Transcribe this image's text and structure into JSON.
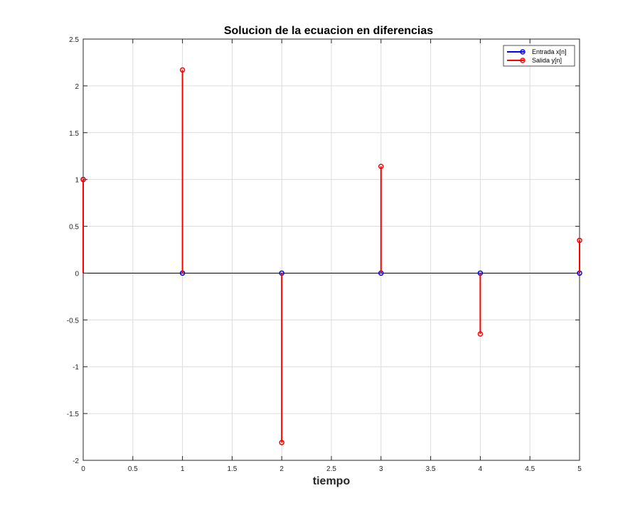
{
  "chart_data": {
    "type": "stem",
    "title": "Solucion de la ecuacion en diferencias",
    "xlabel": "tiempo",
    "ylabel": "",
    "xlim": [
      0,
      5
    ],
    "ylim": [
      -2,
      2.5
    ],
    "xticks": [
      0,
      0.5,
      1,
      1.5,
      2,
      2.5,
      3,
      3.5,
      4,
      4.5,
      5
    ],
    "yticks": [
      -2,
      -1.5,
      -1,
      -0.5,
      0,
      0.5,
      1,
      1.5,
      2,
      2.5
    ],
    "xtick_labels": [
      "0",
      "0.5",
      "1",
      "1.5",
      "2",
      "2.5",
      "3",
      "3.5",
      "4",
      "4.5",
      "5"
    ],
    "ytick_labels": [
      "-2",
      "-1.5",
      "-1",
      "-0.5",
      "0",
      "0.5",
      "1",
      "1.5",
      "2",
      "2.5"
    ],
    "grid": true,
    "legend_position": "top-right",
    "series": [
      {
        "name": "Entrada x[n]",
        "color": "#0000ff",
        "x": [
          0,
          1,
          2,
          3,
          4,
          5
        ],
        "y": [
          1,
          0,
          0,
          0,
          0,
          0
        ]
      },
      {
        "name": "Salida y[n]",
        "color": "#ff0000",
        "x": [
          0,
          1,
          2,
          3,
          4,
          5
        ],
        "y": [
          1,
          2.17,
          -1.81,
          1.14,
          -0.65,
          0.35
        ]
      }
    ]
  }
}
